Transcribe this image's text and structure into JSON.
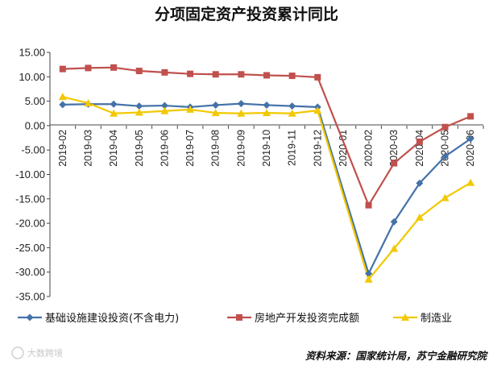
{
  "chart_data": {
    "type": "line",
    "title": "分项固定资产投资累计同比",
    "categories": [
      "2019-02",
      "2019-03",
      "2019-04",
      "2019-05",
      "2019-06",
      "2019-07",
      "2019-08",
      "2019-09",
      "2019-10",
      "2019-11",
      "2019-12",
      "2020-01",
      "2020-02",
      "2020-03",
      "2020-04",
      "2020-05",
      "2020-06"
    ],
    "y_ticks": [
      "15.00",
      "10.00",
      "5.00",
      "0.00",
      "-5.00",
      "-10.00",
      "-15.00",
      "-20.00",
      "-25.00",
      "-30.00",
      "-35.00"
    ],
    "ylim": [
      -35,
      15
    ],
    "xlabel": "",
    "ylabel": "",
    "series": [
      {
        "name": "基础设施建设投资(不含电力)",
        "color": "#4472a8",
        "marker": "diamond",
        "values": [
          4.3,
          4.4,
          4.4,
          4.0,
          4.1,
          3.8,
          4.2,
          4.5,
          4.2,
          4.0,
          3.8,
          null,
          -30.3,
          -19.7,
          -11.8,
          -6.3,
          -2.7
        ]
      },
      {
        "name": "房地产开发投资完成额",
        "color": "#c0504d",
        "marker": "square",
        "values": [
          11.6,
          11.8,
          11.9,
          11.2,
          10.9,
          10.6,
          10.5,
          10.5,
          10.3,
          10.2,
          9.9,
          null,
          -16.3,
          -7.7,
          -3.3,
          -0.3,
          1.9
        ]
      },
      {
        "name": "制造业",
        "color": "#f2c800",
        "marker": "triangle",
        "values": [
          5.9,
          4.6,
          2.5,
          2.7,
          3.0,
          3.3,
          2.6,
          2.5,
          2.6,
          2.5,
          3.1,
          null,
          -31.5,
          -25.2,
          -18.8,
          -14.8,
          -11.7
        ]
      }
    ],
    "legend_position": "bottom",
    "grid": false
  },
  "source_note": "资料来源：国家统计局，苏宁金融研究院",
  "watermark": "大数跨境"
}
